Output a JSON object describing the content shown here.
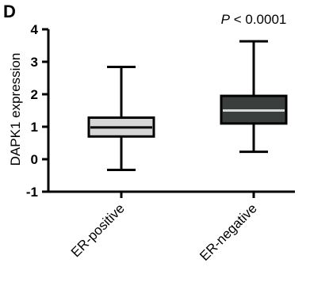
{
  "panel_label": "D",
  "chart_data": {
    "type": "box",
    "ylabel": "DAPK1 expression",
    "ylim": [
      -1,
      4
    ],
    "yticks": [
      "4",
      "3",
      "2",
      "1",
      "0",
      "-1"
    ],
    "grid": false,
    "categories": [
      "ER-positive",
      "ER-negative"
    ],
    "series": [
      {
        "category": "ER-positive",
        "min": -0.33,
        "q1": 0.7,
        "median": 0.98,
        "q3": 1.28,
        "max": 2.84,
        "fill": "#d6d6d6"
      },
      {
        "category": "ER-negative",
        "min": 0.23,
        "q1": 1.1,
        "median": 1.5,
        "q3": 1.95,
        "max": 3.63,
        "fill": "#3a3f3d"
      }
    ],
    "annotation": {
      "text_italic": "P",
      "text_rest": " < 0.0001",
      "category": "ER-negative"
    }
  }
}
